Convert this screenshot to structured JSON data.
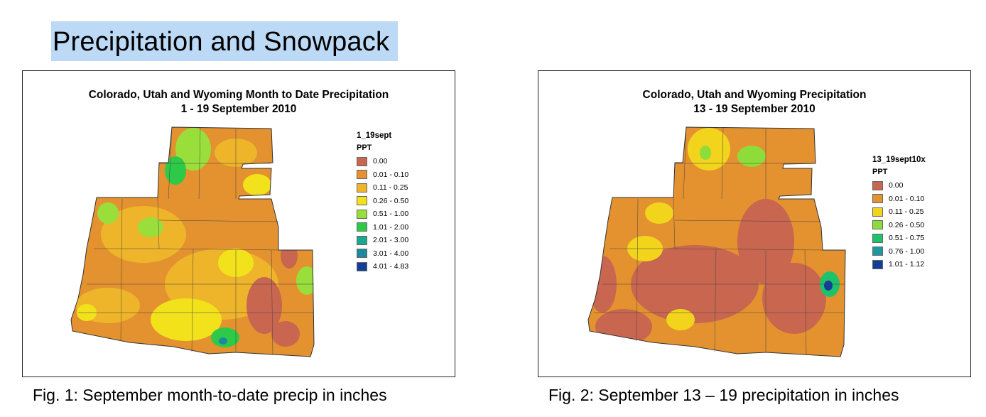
{
  "slide": {
    "title": "Precipitation and Snowpack"
  },
  "maps": [
    {
      "title_line1": "Colorado, Utah and Wyoming Month to Date Precipitation",
      "title_line2": "1 - 19 September 2010",
      "legend_field": "1_19sept",
      "legend_ppt": "PPT",
      "legend_items": [
        {
          "label": "0.00",
          "color": "#c8664f"
        },
        {
          "label": "0.01 - 0.10",
          "color": "#e3922f"
        },
        {
          "label": "0.11 - 0.25",
          "color": "#eeb52a"
        },
        {
          "label": "0.26 - 0.50",
          "color": "#f2e21c"
        },
        {
          "label": "0.51 - 1.00",
          "color": "#9ade3c"
        },
        {
          "label": "1.01 - 2.00",
          "color": "#2ec947"
        },
        {
          "label": "2.01 - 3.00",
          "color": "#1aa88e"
        },
        {
          "label": "3.01 - 4.00",
          "color": "#1a8aa0"
        },
        {
          "label": "4.01 - 4.83",
          "color": "#113f98"
        }
      ],
      "caption": "Fig. 1: September month-to-date precip in inches"
    },
    {
      "title_line1": "Colorado, Utah and Wyoming Precipitation",
      "title_line2": "13 - 19 September 2010",
      "legend_field": "13_19sept10x",
      "legend_ppt": "PPT",
      "legend_items": [
        {
          "label": "0.00",
          "color": "#c8664f"
        },
        {
          "label": "0.01 - 0.10",
          "color": "#e3922f"
        },
        {
          "label": "0.11 - 0.25",
          "color": "#f2d41c"
        },
        {
          "label": "0.26 - 0.50",
          "color": "#8edc3a"
        },
        {
          "label": "0.51 - 0.75",
          "color": "#1fc26a"
        },
        {
          "label": "0.76 - 1.00",
          "color": "#1a9aa0"
        },
        {
          "label": "1.01 - 1.12",
          "color": "#113f98"
        }
      ],
      "caption": "Fig. 2: September 13 – 19 precipitation in inches"
    }
  ]
}
